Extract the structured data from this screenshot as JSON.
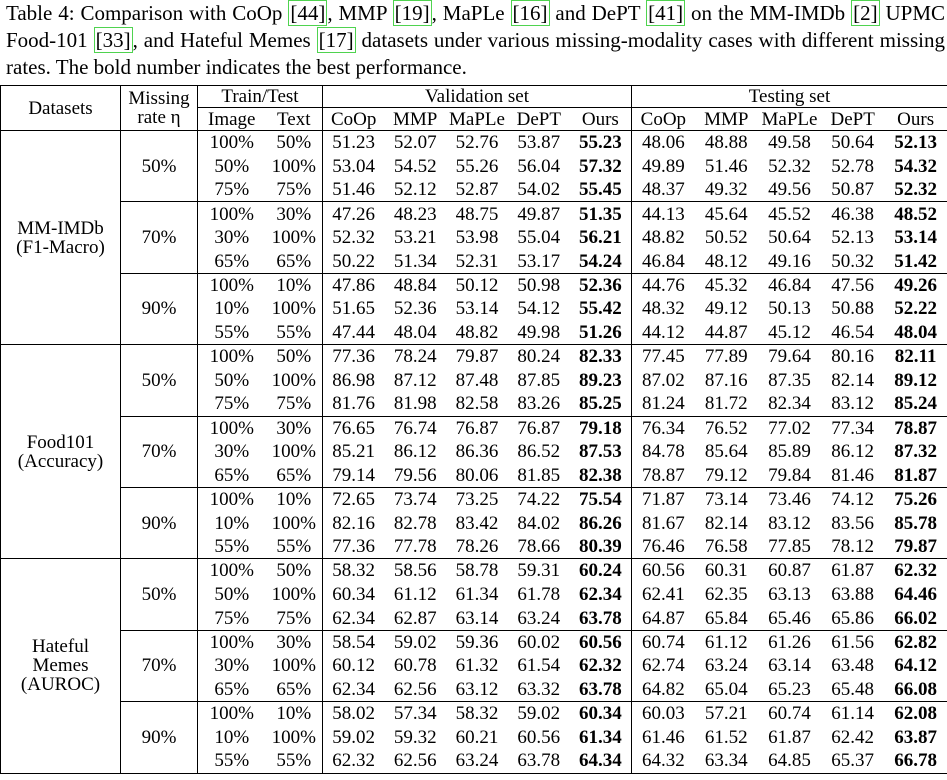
{
  "caption": {
    "parts": [
      {
        "text": "Table 4: Comparison with CoOp "
      },
      {
        "cite": "[44]"
      },
      {
        "text": ", MMP "
      },
      {
        "cite": "[19]"
      },
      {
        "text": ", MaPLe "
      },
      {
        "cite": "[16]"
      },
      {
        "text": " and DePT "
      },
      {
        "cite": "[41]"
      },
      {
        "text": " on the MM-IMDb "
      },
      {
        "cite": "[2]"
      },
      {
        "text": " UPMC Food-101 "
      },
      {
        "cite": "[33]"
      },
      {
        "text": ", and Hateful Memes "
      },
      {
        "cite": "[17]"
      },
      {
        "text": " datasets under various missing-modality cases with different missing rates. The bold number indicates the best performance."
      }
    ]
  },
  "table": {
    "header": {
      "datasets": "Datasets",
      "missing_rate": [
        "Missing",
        "rate η"
      ],
      "train_test": "Train/Test",
      "image": "Image",
      "text": "Text",
      "validation": "Validation set",
      "testing": "Testing set",
      "methods": [
        "CoOp",
        "MMP",
        "MaPLe",
        "DePT",
        "Ours"
      ]
    },
    "groups": [
      {
        "dataset": [
          "MM-IMDb",
          "(F1-Macro)"
        ],
        "rates": [
          {
            "rate": "50%",
            "rows": [
              [
                "100%",
                "50%",
                "51.23",
                "52.07",
                "52.76",
                "53.87",
                "55.23",
                "48.06",
                "48.88",
                "49.58",
                "50.64",
                "52.13"
              ],
              [
                "50%",
                "100%",
                "53.04",
                "54.52",
                "55.26",
                "56.04",
                "57.32",
                "49.89",
                "51.46",
                "52.32",
                "52.78",
                "54.32"
              ],
              [
                "75%",
                "75%",
                "51.46",
                "52.12",
                "52.87",
                "54.02",
                "55.45",
                "48.37",
                "49.32",
                "49.56",
                "50.87",
                "52.32"
              ]
            ]
          },
          {
            "rate": "70%",
            "rows": [
              [
                "100%",
                "30%",
                "47.26",
                "48.23",
                "48.75",
                "49.87",
                "51.35",
                "44.13",
                "45.64",
                "45.52",
                "46.38",
                "48.52"
              ],
              [
                "30%",
                "100%",
                "52.32",
                "53.21",
                "53.98",
                "55.04",
                "56.21",
                "48.82",
                "50.52",
                "50.64",
                "52.13",
                "53.14"
              ],
              [
                "65%",
                "65%",
                "50.22",
                "51.34",
                "52.31",
                "53.17",
                "54.24",
                "46.84",
                "48.12",
                "49.16",
                "50.32",
                "51.42"
              ]
            ]
          },
          {
            "rate": "90%",
            "rows": [
              [
                "100%",
                "10%",
                "47.86",
                "48.84",
                "50.12",
                "50.98",
                "52.36",
                "44.76",
                "45.32",
                "46.84",
                "47.56",
                "49.26"
              ],
              [
                "10%",
                "100%",
                "51.65",
                "52.36",
                "53.14",
                "54.12",
                "55.42",
                "48.32",
                "49.12",
                "50.13",
                "50.88",
                "52.22"
              ],
              [
                "55%",
                "55%",
                "47.44",
                "48.04",
                "48.82",
                "49.98",
                "51.26",
                "44.12",
                "44.87",
                "45.12",
                "46.54",
                "48.04"
              ]
            ]
          }
        ]
      },
      {
        "dataset": [
          "Food101",
          "(Accuracy)"
        ],
        "rates": [
          {
            "rate": "50%",
            "rows": [
              [
                "100%",
                "50%",
                "77.36",
                "78.24",
                "79.87",
                "80.24",
                "82.33",
                "77.45",
                "77.89",
                "79.64",
                "80.16",
                "82.11"
              ],
              [
                "50%",
                "100%",
                "86.98",
                "87.12",
                "87.48",
                "87.85",
                "89.23",
                "87.02",
                "87.16",
                "87.35",
                "82.14",
                "89.12"
              ],
              [
                "75%",
                "75%",
                "81.76",
                "81.98",
                "82.58",
                "83.26",
                "85.25",
                "81.24",
                "81.72",
                "82.34",
                "83.12",
                "85.24"
              ]
            ]
          },
          {
            "rate": "70%",
            "rows": [
              [
                "100%",
                "30%",
                "76.65",
                "76.74",
                "76.87",
                "76.87",
                "79.18",
                "76.34",
                "76.52",
                "77.02",
                "77.34",
                "78.87"
              ],
              [
                "30%",
                "100%",
                "85.21",
                "86.12",
                "86.36",
                "86.52",
                "87.53",
                "84.78",
                "85.64",
                "85.89",
                "86.12",
                "87.32"
              ],
              [
                "65%",
                "65%",
                "79.14",
                "79.56",
                "80.06",
                "81.85",
                "82.38",
                "78.87",
                "79.12",
                "79.84",
                "81.46",
                "81.87"
              ]
            ]
          },
          {
            "rate": "90%",
            "rows": [
              [
                "100%",
                "10%",
                "72.65",
                "73.74",
                "73.25",
                "74.22",
                "75.54",
                "71.87",
                "73.14",
                "73.46",
                "74.12",
                "75.26"
              ],
              [
                "10%",
                "100%",
                "82.16",
                "82.78",
                "83.42",
                "84.02",
                "86.26",
                "81.67",
                "82.14",
                "83.12",
                "83.56",
                "85.78"
              ],
              [
                "55%",
                "55%",
                "77.36",
                "77.78",
                "78.26",
                "78.66",
                "80.39",
                "76.46",
                "76.58",
                "77.85",
                "78.12",
                "79.87"
              ]
            ]
          }
        ]
      },
      {
        "dataset": [
          "Hateful",
          "Memes",
          "(AUROC)"
        ],
        "rates": [
          {
            "rate": "50%",
            "rows": [
              [
                "100%",
                "50%",
                "58.32",
                "58.56",
                "58.78",
                "59.31",
                "60.24",
                "60.56",
                "60.31",
                "60.87",
                "61.87",
                "62.32"
              ],
              [
                "50%",
                "100%",
                "60.34",
                "61.12",
                "61.34",
                "61.78",
                "62.34",
                "62.41",
                "62.35",
                "63.13",
                "63.88",
                "64.46"
              ],
              [
                "75%",
                "75%",
                "62.34",
                "62.87",
                "63.14",
                "63.24",
                "63.78",
                "64.87",
                "65.84",
                "65.46",
                "65.86",
                "66.02"
              ]
            ]
          },
          {
            "rate": "70%",
            "rows": [
              [
                "100%",
                "30%",
                "58.54",
                "59.02",
                "59.36",
                "60.02",
                "60.56",
                "60.74",
                "61.12",
                "61.26",
                "61.56",
                "62.82"
              ],
              [
                "30%",
                "100%",
                "60.12",
                "60.78",
                "61.32",
                "61.54",
                "62.32",
                "62.74",
                "63.24",
                "63.14",
                "63.48",
                "64.12"
              ],
              [
                "65%",
                "65%",
                "62.34",
                "62.56",
                "63.12",
                "63.32",
                "63.78",
                "64.82",
                "65.04",
                "65.23",
                "65.48",
                "66.08"
              ]
            ]
          },
          {
            "rate": "90%",
            "rows": [
              [
                "100%",
                "10%",
                "58.02",
                "57.34",
                "58.32",
                "59.02",
                "60.34",
                "60.03",
                "57.21",
                "60.74",
                "61.14",
                "62.08"
              ],
              [
                "10%",
                "100%",
                "59.02",
                "59.32",
                "60.21",
                "60.56",
                "61.34",
                "61.46",
                "61.52",
                "61.87",
                "62.42",
                "63.87"
              ],
              [
                "55%",
                "55%",
                "62.32",
                "62.56",
                "63.24",
                "63.78",
                "64.34",
                "64.32",
                "63.34",
                "64.85",
                "65.37",
                "66.78"
              ]
            ]
          }
        ]
      }
    ]
  }
}
